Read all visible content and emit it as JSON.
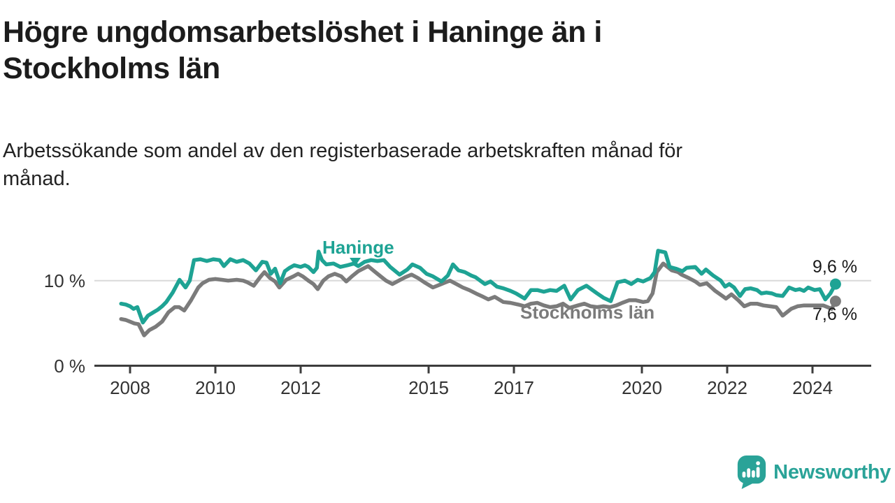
{
  "header": {
    "title": "Högre ungdomsarbetslöshet i Haninge än i Stockholms län",
    "subtitle": "Arbetssökande som andel av den registerbaserade arbetskraften månad för månad."
  },
  "chart_data": {
    "type": "line",
    "x_unit": "year (monthly observations)",
    "xlim": [
      2007.6,
      2025.1
    ],
    "ylim": [
      0,
      14.6
    ],
    "grid": "single horizontal gridline at 10 %",
    "x_ticks": [
      2008,
      2010,
      2012,
      2015,
      2017,
      2020,
      2022,
      2024
    ],
    "y_ticks": [
      {
        "value": 10,
        "label": "10 %"
      },
      {
        "value": 0,
        "label": "0 %"
      }
    ],
    "colors": {
      "axis": "#3c3c3c",
      "grid": "#d9d9d9",
      "tick_text": "#333333"
    },
    "series": [
      {
        "name": "Stockholms län",
        "color": "#7b7b7b",
        "end_label": "7,6 %",
        "end_value": 7.6,
        "points": [
          [
            2007.79,
            5.5
          ],
          [
            2007.9,
            5.4
          ],
          [
            2008.0,
            5.2
          ],
          [
            2008.1,
            5.0
          ],
          [
            2008.2,
            4.9
          ],
          [
            2008.33,
            3.6
          ],
          [
            2008.45,
            4.2
          ],
          [
            2008.6,
            4.6
          ],
          [
            2008.75,
            5.2
          ],
          [
            2008.9,
            6.3
          ],
          [
            2009.05,
            6.9
          ],
          [
            2009.15,
            6.9
          ],
          [
            2009.27,
            6.5
          ],
          [
            2009.43,
            7.7
          ],
          [
            2009.6,
            9.2
          ],
          [
            2009.7,
            9.7
          ],
          [
            2009.85,
            10.1
          ],
          [
            2010.0,
            10.2
          ],
          [
            2010.15,
            10.1
          ],
          [
            2010.3,
            10.0
          ],
          [
            2010.5,
            10.1
          ],
          [
            2010.65,
            10.0
          ],
          [
            2010.75,
            9.8
          ],
          [
            2010.9,
            9.4
          ],
          [
            2011.05,
            10.4
          ],
          [
            2011.15,
            11.0
          ],
          [
            2011.28,
            10.3
          ],
          [
            2011.4,
            9.9
          ],
          [
            2011.5,
            9.2
          ],
          [
            2011.66,
            10.1
          ],
          [
            2011.83,
            10.5
          ],
          [
            2011.94,
            10.8
          ],
          [
            2012.05,
            10.5
          ],
          [
            2012.18,
            10.0
          ],
          [
            2012.3,
            9.6
          ],
          [
            2012.4,
            9.0
          ],
          [
            2012.53,
            10.0
          ],
          [
            2012.65,
            10.5
          ],
          [
            2012.8,
            10.8
          ],
          [
            2012.95,
            10.5
          ],
          [
            2013.07,
            9.9
          ],
          [
            2013.2,
            10.5
          ],
          [
            2013.35,
            11.1
          ],
          [
            2013.58,
            11.7
          ],
          [
            2013.75,
            11.0
          ],
          [
            2013.9,
            10.4
          ],
          [
            2014.0,
            10.0
          ],
          [
            2014.15,
            9.6
          ],
          [
            2014.3,
            10.0
          ],
          [
            2014.45,
            10.4
          ],
          [
            2014.6,
            10.7
          ],
          [
            2014.75,
            10.3
          ],
          [
            2014.9,
            9.8
          ],
          [
            2015.1,
            9.2
          ],
          [
            2015.25,
            9.5
          ],
          [
            2015.4,
            9.8
          ],
          [
            2015.5,
            10.0
          ],
          [
            2015.65,
            9.6
          ],
          [
            2015.8,
            9.2
          ],
          [
            2015.95,
            8.9
          ],
          [
            2016.15,
            8.4
          ],
          [
            2016.28,
            8.1
          ],
          [
            2016.4,
            7.8
          ],
          [
            2016.55,
            8.1
          ],
          [
            2016.75,
            7.5
          ],
          [
            2016.92,
            7.4
          ],
          [
            2017.1,
            7.2
          ],
          [
            2017.25,
            7.0
          ],
          [
            2017.4,
            7.3
          ],
          [
            2017.55,
            7.4
          ],
          [
            2017.7,
            7.1
          ],
          [
            2017.85,
            6.9
          ],
          [
            2018.0,
            7.0
          ],
          [
            2018.15,
            7.3
          ],
          [
            2018.3,
            6.8
          ],
          [
            2018.5,
            7.1
          ],
          [
            2018.65,
            7.3
          ],
          [
            2018.8,
            7.0
          ],
          [
            2018.95,
            6.9
          ],
          [
            2019.1,
            7.0
          ],
          [
            2019.25,
            6.9
          ],
          [
            2019.4,
            7.1
          ],
          [
            2019.54,
            7.4
          ],
          [
            2019.7,
            7.7
          ],
          [
            2019.86,
            7.7
          ],
          [
            2020.03,
            7.5
          ],
          [
            2020.14,
            7.6
          ],
          [
            2020.25,
            8.5
          ],
          [
            2020.35,
            11.0
          ],
          [
            2020.5,
            12.0
          ],
          [
            2020.7,
            11.2
          ],
          [
            2020.85,
            11.0
          ],
          [
            2020.93,
            10.7
          ],
          [
            2021.1,
            10.3
          ],
          [
            2021.25,
            9.9
          ],
          [
            2021.36,
            9.5
          ],
          [
            2021.52,
            9.7
          ],
          [
            2021.72,
            8.8
          ],
          [
            2021.89,
            8.2
          ],
          [
            2021.97,
            7.9
          ],
          [
            2022.1,
            8.4
          ],
          [
            2022.26,
            7.7
          ],
          [
            2022.4,
            7.0
          ],
          [
            2022.55,
            7.3
          ],
          [
            2022.7,
            7.3
          ],
          [
            2022.85,
            7.1
          ],
          [
            2023.0,
            7.0
          ],
          [
            2023.15,
            6.9
          ],
          [
            2023.3,
            5.9
          ],
          [
            2023.5,
            6.7
          ],
          [
            2023.65,
            7.0
          ],
          [
            2023.8,
            7.1
          ],
          [
            2023.95,
            7.1
          ],
          [
            2024.1,
            7.1
          ],
          [
            2024.25,
            7.1
          ],
          [
            2024.35,
            6.9
          ],
          [
            2024.45,
            6.7
          ],
          [
            2024.54,
            7.6
          ]
        ]
      },
      {
        "name": "Haninge",
        "color": "#1ea394",
        "end_label": "9,6 %",
        "end_value": 9.6,
        "points": [
          [
            2007.79,
            7.3
          ],
          [
            2007.9,
            7.2
          ],
          [
            2008.0,
            7.0
          ],
          [
            2008.08,
            6.7
          ],
          [
            2008.17,
            6.9
          ],
          [
            2008.3,
            5.1
          ],
          [
            2008.42,
            5.9
          ],
          [
            2008.55,
            6.3
          ],
          [
            2008.65,
            6.6
          ],
          [
            2008.75,
            7.0
          ],
          [
            2008.85,
            7.5
          ],
          [
            2009.0,
            8.6
          ],
          [
            2009.16,
            10.1
          ],
          [
            2009.3,
            9.2
          ],
          [
            2009.4,
            10.0
          ],
          [
            2009.5,
            12.4
          ],
          [
            2009.65,
            12.5
          ],
          [
            2009.8,
            12.3
          ],
          [
            2009.95,
            12.5
          ],
          [
            2010.1,
            12.4
          ],
          [
            2010.2,
            11.7
          ],
          [
            2010.35,
            12.5
          ],
          [
            2010.5,
            12.2
          ],
          [
            2010.65,
            12.4
          ],
          [
            2010.8,
            12.0
          ],
          [
            2010.95,
            11.2
          ],
          [
            2011.1,
            12.2
          ],
          [
            2011.2,
            12.1
          ],
          [
            2011.3,
            10.8
          ],
          [
            2011.4,
            11.4
          ],
          [
            2011.52,
            9.7
          ],
          [
            2011.63,
            11.1
          ],
          [
            2011.74,
            11.5
          ],
          [
            2011.85,
            11.8
          ],
          [
            2012.0,
            11.6
          ],
          [
            2012.1,
            11.8
          ],
          [
            2012.18,
            11.6
          ],
          [
            2012.3,
            11.0
          ],
          [
            2012.38,
            11.5
          ],
          [
            2012.42,
            13.4
          ],
          [
            2012.5,
            12.4
          ],
          [
            2012.6,
            11.9
          ],
          [
            2012.77,
            12.0
          ],
          [
            2012.93,
            11.6
          ],
          [
            2013.1,
            11.8
          ],
          [
            2013.25,
            12.0
          ],
          [
            2013.35,
            11.7
          ],
          [
            2013.5,
            12.2
          ],
          [
            2013.65,
            12.4
          ],
          [
            2013.8,
            12.3
          ],
          [
            2013.95,
            12.4
          ],
          [
            2014.1,
            11.6
          ],
          [
            2014.32,
            10.7
          ],
          [
            2014.5,
            11.3
          ],
          [
            2014.62,
            11.9
          ],
          [
            2014.8,
            11.5
          ],
          [
            2014.95,
            10.8
          ],
          [
            2015.1,
            10.5
          ],
          [
            2015.3,
            9.9
          ],
          [
            2015.45,
            10.6
          ],
          [
            2015.57,
            11.9
          ],
          [
            2015.7,
            11.2
          ],
          [
            2015.85,
            11.0
          ],
          [
            2016.0,
            10.6
          ],
          [
            2016.1,
            10.4
          ],
          [
            2016.32,
            9.6
          ],
          [
            2016.45,
            9.9
          ],
          [
            2016.6,
            9.3
          ],
          [
            2016.75,
            9.1
          ],
          [
            2016.92,
            8.8
          ],
          [
            2017.05,
            8.5
          ],
          [
            2017.25,
            7.9
          ],
          [
            2017.4,
            8.9
          ],
          [
            2017.55,
            8.9
          ],
          [
            2017.7,
            8.7
          ],
          [
            2017.85,
            8.9
          ],
          [
            2018.0,
            8.8
          ],
          [
            2018.18,
            9.4
          ],
          [
            2018.33,
            7.8
          ],
          [
            2018.5,
            8.9
          ],
          [
            2018.7,
            9.4
          ],
          [
            2018.95,
            8.5
          ],
          [
            2019.1,
            8.0
          ],
          [
            2019.27,
            7.6
          ],
          [
            2019.43,
            9.8
          ],
          [
            2019.6,
            10.0
          ],
          [
            2019.75,
            9.6
          ],
          [
            2019.9,
            10.1
          ],
          [
            2020.03,
            9.9
          ],
          [
            2020.2,
            10.3
          ],
          [
            2020.3,
            11.0
          ],
          [
            2020.38,
            13.5
          ],
          [
            2020.55,
            13.3
          ],
          [
            2020.65,
            11.6
          ],
          [
            2020.8,
            11.4
          ],
          [
            2020.95,
            11.1
          ],
          [
            2021.05,
            11.5
          ],
          [
            2021.25,
            11.6
          ],
          [
            2021.4,
            10.8
          ],
          [
            2021.5,
            11.3
          ],
          [
            2021.67,
            10.6
          ],
          [
            2021.85,
            10.0
          ],
          [
            2021.95,
            9.3
          ],
          [
            2022.05,
            9.6
          ],
          [
            2022.16,
            9.2
          ],
          [
            2022.3,
            8.2
          ],
          [
            2022.42,
            9.0
          ],
          [
            2022.55,
            9.1
          ],
          [
            2022.7,
            8.9
          ],
          [
            2022.8,
            8.5
          ],
          [
            2022.92,
            8.6
          ],
          [
            2023.05,
            8.5
          ],
          [
            2023.15,
            8.3
          ],
          [
            2023.3,
            8.2
          ],
          [
            2023.45,
            9.2
          ],
          [
            2023.6,
            8.9
          ],
          [
            2023.7,
            9.0
          ],
          [
            2023.8,
            8.8
          ],
          [
            2023.9,
            9.2
          ],
          [
            2024.05,
            8.9
          ],
          [
            2024.17,
            9.0
          ],
          [
            2024.3,
            7.8
          ],
          [
            2024.42,
            8.5
          ],
          [
            2024.54,
            9.6
          ]
        ]
      }
    ],
    "annotations": [
      {
        "text": "Haninge",
        "color": "#1ea394",
        "style": "bold label with down-arrow pointing at teal line near 2013"
      },
      {
        "text": "Stockholms län",
        "color": "#7b7b7b",
        "style": "bold label on grey line near 2017"
      }
    ],
    "legend_position": "inline-labels"
  },
  "footer": {
    "brand": "Newsworthy",
    "brand_color": "#2aa398",
    "logo_icon": "speech-bubble-bar-chart-exclamation-icon"
  }
}
